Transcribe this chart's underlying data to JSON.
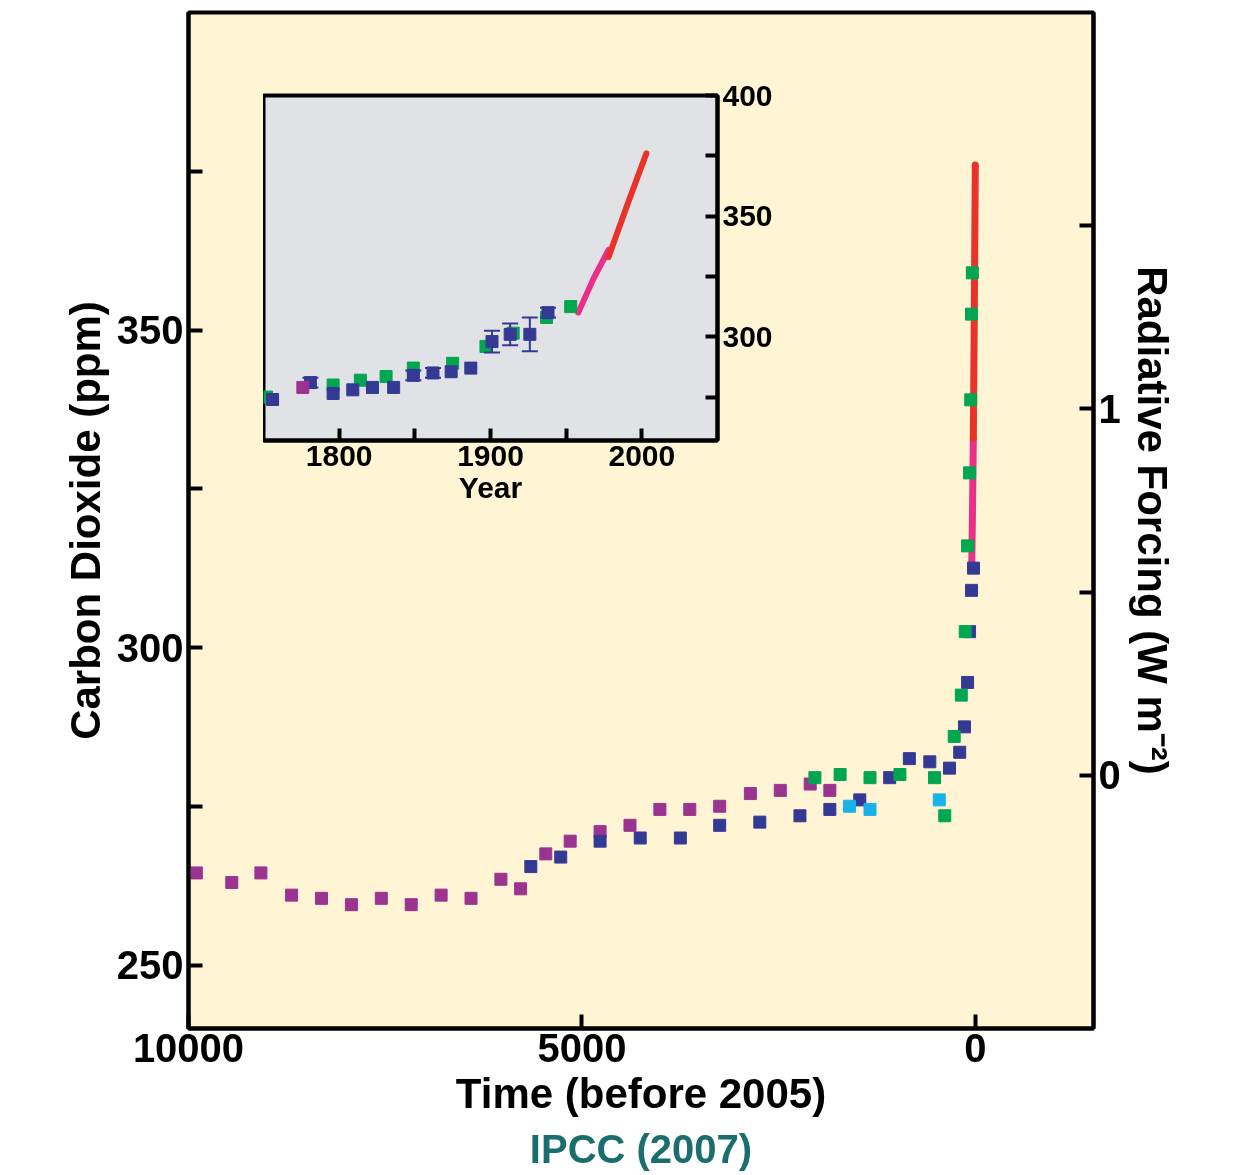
{
  "chart_data": [
    {
      "type": "scatter",
      "xlabel": "Time (before 2005)",
      "ylabel": "Carbon Dioxide (ppm)",
      "y2label": "Radiative Forcing (W m⁻²)",
      "xlim": [
        10000,
        -1500
      ],
      "xticks": [
        10000,
        5000,
        0
      ],
      "ylim": [
        240,
        400
      ],
      "yticks": [
        250,
        {
          "value": 275,
          "label": null
        },
        300,
        {
          "value": 325,
          "label": null
        },
        350,
        {
          "value": 375,
          "label": null
        }
      ],
      "y2lim": [
        -0.69,
        2.08
      ],
      "y2ticks": [
        0,
        {
          "value": 0.5,
          "label": null
        },
        1,
        {
          "value": 1.5,
          "label": null
        }
      ],
      "marker": "square",
      "grid": false,
      "annotations": [
        "IPCC (2007)"
      ],
      "series": [
        {
          "color": "#9b3390",
          "x": [
            9900,
            9450,
            9080,
            8690,
            8310,
            7930,
            7550,
            7170,
            6790,
            6410,
            6030,
            5780,
            5460,
            5150,
            4770,
            4390,
            4010,
            3630,
            3250,
            2860,
            2480,
            2100,
            1850
          ],
          "values": [
            264.5,
            263,
            264.5,
            261,
            260.5,
            259.5,
            260.5,
            259.5,
            261,
            260.5,
            263.5,
            262,
            267.5,
            269.5,
            271,
            272,
            274.5,
            274.5,
            275,
            277,
            277.5,
            278.5,
            277.5
          ]
        },
        {
          "color": "#343a94",
          "x": [
            5650,
            5270,
            4770,
            4260,
            3750,
            3250,
            2740,
            2230,
            1850,
            1470,
            1090,
            840,
            580,
            330,
            200,
            140,
            100,
            75,
            50,
            25
          ],
          "values": [
            265.5,
            267,
            269.5,
            270,
            270,
            272,
            272.5,
            273.5,
            274.5,
            276,
            279.5,
            282.5,
            282,
            281,
            283.5,
            287.5,
            294.5,
            302.5,
            309,
            312.5
          ]
        },
        {
          "color": "#00a650",
          "x": [
            2040,
            1720,
            1340,
            960,
            520,
            390,
            270,
            180,
            130,
            100,
            75,
            60,
            50,
            40
          ],
          "values": [
            279.5,
            280,
            279.5,
            280,
            279.5,
            273.5,
            286,
            292.5,
            302.5,
            316,
            327.5,
            339,
            352.5,
            359
          ]
        },
        {
          "color": "#17b3e8",
          "x": [
            1600,
            1340,
            460
          ],
          "values": [
            275,
            274.5,
            276
          ]
        },
        {
          "type": "line",
          "marker": "none",
          "color": "#e8308a",
          "x": [
            47,
            37,
            27
          ],
          "values": [
            313,
            322,
            333
          ]
        },
        {
          "type": "line",
          "marker": "none",
          "color": "#e8332b",
          "x": [
            27,
            15,
            2
          ],
          "values": [
            333,
            352,
            376
          ]
        }
      ]
    },
    {
      "type": "scatter",
      "xlabel": "Year",
      "xlim": [
        1750,
        2050
      ],
      "xticks": [
        1800,
        {
          "value": 1850,
          "label": null
        },
        1900,
        {
          "value": 1950,
          "label": null
        },
        2000
      ],
      "ylim": [
        257,
        400
      ],
      "yticks": [
        {
          "value": 275,
          "label": null
        },
        300,
        {
          "value": 325,
          "label": null
        },
        350,
        {
          "value": 375,
          "label": null
        },
        400
      ],
      "marker": "square",
      "grid": false,
      "series": [
        {
          "color": "#00a650",
          "x": [
            1752,
            1796,
            1814,
            1831,
            1849,
            1875,
            1897,
            1915,
            1937,
            1953
          ],
          "values": [
            275,
            280,
            282,
            283.5,
            287,
            289,
            296,
            301.5,
            308,
            312.5
          ]
        },
        {
          "color": "#343a94",
          "x": [
            1756,
            1781,
            1796,
            1809,
            1822,
            1836,
            1849,
            1862,
            1874,
            1887,
            1901,
            1913,
            1926,
            1938
          ],
          "values": [
            274,
            281,
            276.5,
            278,
            279,
            279,
            284,
            285,
            285.5,
            287,
            298,
            301,
            301,
            310
          ],
          "errors": [
            null,
            2,
            null,
            null,
            null,
            null,
            2,
            2,
            null,
            null,
            4.5,
            4.5,
            7,
            2
          ]
        },
        {
          "color": "#9b3390",
          "x": [
            1776
          ],
          "values": [
            279
          ]
        },
        {
          "type": "line",
          "marker": "none",
          "color": "#e8308a",
          "x": [
            1958,
            1968,
            1978
          ],
          "values": [
            310,
            324,
            336
          ]
        },
        {
          "type": "line",
          "marker": "none",
          "color": "#e8332b",
          "x": [
            1978,
            1990,
            2003
          ],
          "values": [
            333,
            354,
            376
          ]
        }
      ]
    }
  ]
}
